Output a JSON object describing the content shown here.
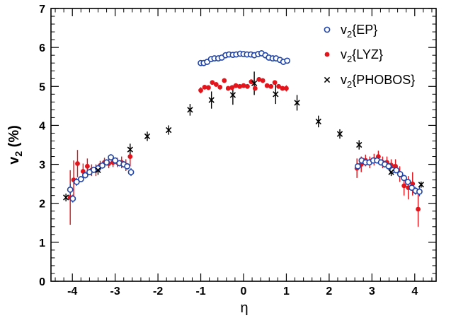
{
  "chart_data": {
    "type": "scatter",
    "title": "",
    "xlabel": "η",
    "ylabel": "v2 (%)",
    "ylabel_parts": {
      "main": "v",
      "sub": "2",
      "rest": " (%)"
    },
    "xlim": [
      -4.5,
      4.5
    ],
    "ylim": [
      0,
      7
    ],
    "xticks": [
      -4,
      -3,
      -2,
      -1,
      0,
      1,
      2,
      3,
      4
    ],
    "yticks": [
      0,
      1,
      2,
      3,
      4,
      5,
      6,
      7
    ],
    "grid": false,
    "legend_position": "top-right",
    "series": [
      {
        "name": "v2{EP}",
        "name_parts": {
          "main": "v",
          "sub": "2",
          "rest": "{EP}"
        },
        "marker": "open-circle",
        "color": "#2346a6",
        "points": [
          {
            "x": -4.05,
            "y": 2.35,
            "err": 0.15
          },
          {
            "x": -3.99,
            "y": 2.12,
            "err": 0.1
          },
          {
            "x": -3.9,
            "y": 2.55,
            "err": 0.1
          },
          {
            "x": -3.8,
            "y": 2.62,
            "err": 0.08
          },
          {
            "x": -3.7,
            "y": 2.72,
            "err": 0.08
          },
          {
            "x": -3.6,
            "y": 2.8,
            "err": 0.08
          },
          {
            "x": -3.5,
            "y": 2.86,
            "err": 0.08
          },
          {
            "x": -3.4,
            "y": 2.9,
            "err": 0.08
          },
          {
            "x": -3.3,
            "y": 2.97,
            "err": 0.08
          },
          {
            "x": -3.2,
            "y": 3.05,
            "err": 0.08
          },
          {
            "x": -3.1,
            "y": 3.18,
            "err": 0.08
          },
          {
            "x": -3.0,
            "y": 3.1,
            "err": 0.08
          },
          {
            "x": -2.9,
            "y": 3.03,
            "err": 0.08
          },
          {
            "x": -2.8,
            "y": 3.0,
            "err": 0.08
          },
          {
            "x": -2.72,
            "y": 2.95,
            "err": 0.08
          },
          {
            "x": -2.63,
            "y": 2.8,
            "err": 0.1
          },
          {
            "x": -1.0,
            "y": 5.6,
            "err": 0.03
          },
          {
            "x": -0.93,
            "y": 5.6,
            "err": 0.03
          },
          {
            "x": -0.85,
            "y": 5.63,
            "err": 0.03
          },
          {
            "x": -0.76,
            "y": 5.7,
            "err": 0.03
          },
          {
            "x": -0.68,
            "y": 5.72,
            "err": 0.03
          },
          {
            "x": -0.59,
            "y": 5.72,
            "err": 0.03
          },
          {
            "x": -0.51,
            "y": 5.74,
            "err": 0.03
          },
          {
            "x": -0.42,
            "y": 5.8,
            "err": 0.03
          },
          {
            "x": -0.34,
            "y": 5.82,
            "err": 0.03
          },
          {
            "x": -0.25,
            "y": 5.81,
            "err": 0.03
          },
          {
            "x": -0.17,
            "y": 5.82,
            "err": 0.03
          },
          {
            "x": -0.08,
            "y": 5.84,
            "err": 0.03
          },
          {
            "x": 0.0,
            "y": 5.83,
            "err": 0.03
          },
          {
            "x": 0.08,
            "y": 5.82,
            "err": 0.03
          },
          {
            "x": 0.17,
            "y": 5.82,
            "err": 0.03
          },
          {
            "x": 0.25,
            "y": 5.8,
            "err": 0.03
          },
          {
            "x": 0.34,
            "y": 5.83,
            "err": 0.03
          },
          {
            "x": 0.42,
            "y": 5.85,
            "err": 0.03
          },
          {
            "x": 0.51,
            "y": 5.8,
            "err": 0.03
          },
          {
            "x": 0.59,
            "y": 5.74,
            "err": 0.03
          },
          {
            "x": 0.68,
            "y": 5.72,
            "err": 0.03
          },
          {
            "x": 0.76,
            "y": 5.72,
            "err": 0.03
          },
          {
            "x": 0.85,
            "y": 5.68,
            "err": 0.03
          },
          {
            "x": 0.93,
            "y": 5.63,
            "err": 0.03
          },
          {
            "x": 1.02,
            "y": 5.66,
            "err": 0.03
          },
          {
            "x": 2.67,
            "y": 2.95,
            "err": 0.08
          },
          {
            "x": 2.76,
            "y": 3.1,
            "err": 0.08
          },
          {
            "x": 2.85,
            "y": 3.05,
            "err": 0.08
          },
          {
            "x": 2.94,
            "y": 3.05,
            "err": 0.08
          },
          {
            "x": 3.03,
            "y": 3.1,
            "err": 0.08
          },
          {
            "x": 3.12,
            "y": 3.1,
            "err": 0.08
          },
          {
            "x": 3.21,
            "y": 3.05,
            "err": 0.08
          },
          {
            "x": 3.3,
            "y": 3.0,
            "err": 0.08
          },
          {
            "x": 3.39,
            "y": 2.95,
            "err": 0.08
          },
          {
            "x": 3.48,
            "y": 2.85,
            "err": 0.08
          },
          {
            "x": 3.57,
            "y": 2.85,
            "err": 0.08
          },
          {
            "x": 3.66,
            "y": 2.75,
            "err": 0.08
          },
          {
            "x": 3.75,
            "y": 2.65,
            "err": 0.08
          },
          {
            "x": 3.84,
            "y": 2.55,
            "err": 0.08
          },
          {
            "x": 3.93,
            "y": 2.4,
            "err": 0.08
          },
          {
            "x": 4.02,
            "y": 2.32,
            "err": 0.1
          },
          {
            "x": 4.11,
            "y": 2.3,
            "err": 0.12
          }
        ]
      },
      {
        "name": "v2{LYZ}",
        "name_parts": {
          "main": "v",
          "sub": "2",
          "rest": "{LYZ}"
        },
        "marker": "filled-circle",
        "color": "#e3141b",
        "points": [
          {
            "x": -4.05,
            "y": 2.15,
            "err": 0.7
          },
          {
            "x": -3.97,
            "y": 2.6,
            "err": 0.5
          },
          {
            "x": -3.88,
            "y": 3.02,
            "err": 0.35
          },
          {
            "x": -3.75,
            "y": 2.82,
            "err": 0.2
          },
          {
            "x": -3.65,
            "y": 2.95,
            "err": 0.2
          },
          {
            "x": -3.55,
            "y": 2.85,
            "err": 0.15
          },
          {
            "x": -3.45,
            "y": 2.85,
            "err": 0.15
          },
          {
            "x": -3.35,
            "y": 2.97,
            "err": 0.12
          },
          {
            "x": -3.25,
            "y": 3.05,
            "err": 0.12
          },
          {
            "x": -3.15,
            "y": 3.02,
            "err": 0.12
          },
          {
            "x": -3.05,
            "y": 3.05,
            "err": 0.12
          },
          {
            "x": -2.95,
            "y": 3.05,
            "err": 0.12
          },
          {
            "x": -2.85,
            "y": 3.05,
            "err": 0.15
          },
          {
            "x": -2.75,
            "y": 2.98,
            "err": 0.15
          },
          {
            "x": -2.65,
            "y": 3.2,
            "err": 0.25
          },
          {
            "x": -1.0,
            "y": 4.9,
            "err": 0.08
          },
          {
            "x": -0.91,
            "y": 4.98,
            "err": 0.06
          },
          {
            "x": -0.82,
            "y": 4.97,
            "err": 0.06
          },
          {
            "x": -0.73,
            "y": 5.1,
            "err": 0.06
          },
          {
            "x": -0.64,
            "y": 5.05,
            "err": 0.06
          },
          {
            "x": -0.55,
            "y": 4.98,
            "err": 0.06
          },
          {
            "x": -0.45,
            "y": 5.15,
            "err": 0.06
          },
          {
            "x": -0.36,
            "y": 4.95,
            "err": 0.06
          },
          {
            "x": -0.27,
            "y": 4.97,
            "err": 0.06
          },
          {
            "x": -0.18,
            "y": 5.02,
            "err": 0.06
          },
          {
            "x": -0.09,
            "y": 5.0,
            "err": 0.06
          },
          {
            "x": 0.0,
            "y": 5.02,
            "err": 0.06
          },
          {
            "x": 0.09,
            "y": 5.0,
            "err": 0.06
          },
          {
            "x": 0.18,
            "y": 5.12,
            "err": 0.06
          },
          {
            "x": 0.27,
            "y": 4.95,
            "err": 0.06
          },
          {
            "x": 0.36,
            "y": 5.18,
            "err": 0.06
          },
          {
            "x": 0.45,
            "y": 5.15,
            "err": 0.06
          },
          {
            "x": 0.55,
            "y": 5.02,
            "err": 0.06
          },
          {
            "x": 0.64,
            "y": 5.0,
            "err": 0.06
          },
          {
            "x": 0.73,
            "y": 5.1,
            "err": 0.06
          },
          {
            "x": 0.82,
            "y": 5.0,
            "err": 0.06
          },
          {
            "x": 0.91,
            "y": 4.95,
            "err": 0.06
          },
          {
            "x": 1.0,
            "y": 4.95,
            "err": 0.08
          },
          {
            "x": 2.65,
            "y": 2.9,
            "err": 0.25
          },
          {
            "x": 2.75,
            "y": 3.0,
            "err": 0.2
          },
          {
            "x": 2.85,
            "y": 3.1,
            "err": 0.15
          },
          {
            "x": 2.95,
            "y": 3.05,
            "err": 0.15
          },
          {
            "x": 3.05,
            "y": 3.12,
            "err": 0.15
          },
          {
            "x": 3.15,
            "y": 3.2,
            "err": 0.15
          },
          {
            "x": 3.25,
            "y": 3.05,
            "err": 0.15
          },
          {
            "x": 3.35,
            "y": 3.05,
            "err": 0.15
          },
          {
            "x": 3.45,
            "y": 2.98,
            "err": 0.15
          },
          {
            "x": 3.55,
            "y": 2.95,
            "err": 0.18
          },
          {
            "x": 3.65,
            "y": 2.75,
            "err": 0.2
          },
          {
            "x": 3.75,
            "y": 2.45,
            "err": 0.25
          },
          {
            "x": 3.85,
            "y": 2.4,
            "err": 0.3
          },
          {
            "x": 3.95,
            "y": 2.5,
            "err": 0.3
          },
          {
            "x": 4.08,
            "y": 1.85,
            "err": 0.45
          }
        ]
      },
      {
        "name": "v2{PHOBOS}",
        "name_parts": {
          "main": "v",
          "sub": "2",
          "rest": "{PHOBOS}"
        },
        "marker": "cross",
        "color": "#000000",
        "points": [
          {
            "x": -4.15,
            "y": 2.15,
            "err": 0.1
          },
          {
            "x": -3.4,
            "y": 2.85,
            "err": 0.12
          },
          {
            "x": -2.65,
            "y": 3.38,
            "err": 0.15
          },
          {
            "x": -2.25,
            "y": 3.72,
            "err": 0.12
          },
          {
            "x": -1.75,
            "y": 3.88,
            "err": 0.12
          },
          {
            "x": -1.25,
            "y": 4.4,
            "err": 0.15
          },
          {
            "x": -0.75,
            "y": 4.65,
            "err": 0.22
          },
          {
            "x": -0.25,
            "y": 4.78,
            "err": 0.25
          },
          {
            "x": 0.25,
            "y": 5.08,
            "err": 0.3
          },
          {
            "x": 0.75,
            "y": 4.8,
            "err": 0.25
          },
          {
            "x": 1.25,
            "y": 4.58,
            "err": 0.2
          },
          {
            "x": 1.75,
            "y": 4.1,
            "err": 0.15
          },
          {
            "x": 2.25,
            "y": 3.78,
            "err": 0.12
          },
          {
            "x": 2.7,
            "y": 3.5,
            "err": 0.12
          },
          {
            "x": 3.45,
            "y": 2.8,
            "err": 0.1
          },
          {
            "x": 4.15,
            "y": 2.48,
            "err": 0.08
          }
        ]
      }
    ]
  }
}
